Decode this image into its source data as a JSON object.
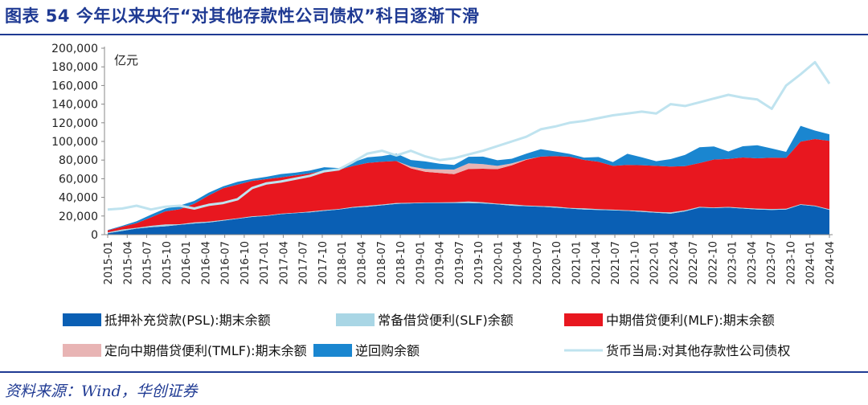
{
  "figure": {
    "title": "图表 54   今年以来央行“对其他存款性公司债权”科目逐渐下滑",
    "source": "资料来源：Wind，华创证券"
  },
  "colors": {
    "psl": "#0a5fb4",
    "slf": "#a9d6e5",
    "mlf": "#e8171f",
    "tmlf": "#e8b4b4",
    "repo": "#1a86d0",
    "claims": "#bfe3ef",
    "title": "#1f3a93"
  },
  "chart_data": {
    "type": "area",
    "unit_label": "亿元",
    "ylim": [
      0,
      200000
    ],
    "yticks": [
      "0",
      "20,000",
      "40,000",
      "60,000",
      "80,000",
      "100,000",
      "120,000",
      "140,000",
      "160,000",
      "180,000",
      "200,000"
    ],
    "x_ticks": [
      "2015-01",
      "2015-04",
      "2015-07",
      "2015-10",
      "2016-01",
      "2016-04",
      "2016-07",
      "2016-10",
      "2017-01",
      "2017-04",
      "2017-07",
      "2017-10",
      "2018-01",
      "2018-04",
      "2018-07",
      "2018-10",
      "2019-01",
      "2019-04",
      "2019-07",
      "2019-10",
      "2020-01",
      "2020-04",
      "2020-07",
      "2020-10",
      "2021-01",
      "2021-04",
      "2021-07",
      "2021-10",
      "2022-01",
      "2022-04",
      "2022-07",
      "2022-10",
      "2023-01",
      "2023-04",
      "2023-07",
      "2023-10",
      "2024-01",
      "2024-04"
    ],
    "stacked_area": [
      {
        "name": "抵押补充贷款(PSL):期末余额",
        "values": [
          1500,
          4000,
          6500,
          8000,
          9000,
          10500,
          12000,
          13000,
          15000,
          17000,
          19000,
          20000,
          22000,
          23000,
          24000,
          25500,
          27000,
          29000,
          30000,
          31500,
          33000,
          33500,
          34000,
          34000,
          34000,
          34000,
          33500,
          32500,
          31000,
          30500,
          30000,
          29000,
          28000,
          27000,
          26500,
          26000,
          25500,
          24500,
          23500,
          22500,
          25000,
          29000,
          28500,
          29000,
          28000,
          27000,
          26500,
          27000,
          32000,
          30500,
          26500
        ]
      },
      {
        "name": "常备借贷便利(SLF)余额",
        "values": [
          1000,
          1500,
          800,
          1500,
          2000,
          700,
          1200,
          1000,
          800,
          600,
          700,
          600,
          500,
          500,
          700,
          800,
          500,
          700,
          1000,
          800,
          1000,
          600,
          500,
          600,
          800,
          1500,
          1200,
          800,
          1500,
          800,
          700,
          1200,
          600,
          1200,
          800,
          800,
          700,
          1000,
          800,
          1500,
          1000,
          800,
          600,
          700,
          800,
          900,
          1000,
          800,
          700,
          600,
          700
        ]
      },
      {
        "name": "中期借贷便利(MLF):期末余额",
        "values": [
          2000,
          3000,
          5000,
          9000,
          14000,
          16000,
          20000,
          28000,
          34000,
          36000,
          38000,
          39000,
          39000,
          40000,
          41000,
          42500,
          42000,
          44000,
          46000,
          46000,
          45000,
          37000,
          33000,
          31500,
          30000,
          35000,
          36000,
          37000,
          42000,
          49000,
          53000,
          54000,
          55000,
          52000,
          51000,
          47000,
          48500,
          49000,
          49500,
          49000,
          47500,
          47000,
          51500,
          51500,
          54000,
          54000,
          55000,
          54500,
          67000,
          71500,
          73500
        ]
      },
      {
        "name": "定向中期借贷便利(TMLF):期末余额",
        "values": [
          0,
          0,
          0,
          0,
          0,
          0,
          0,
          0,
          0,
          0,
          0,
          0,
          0,
          0,
          0,
          0,
          0,
          0,
          0,
          0,
          0,
          2000,
          3000,
          4000,
          5000,
          6000,
          5000,
          3500,
          2000,
          500,
          0,
          0,
          0,
          0,
          0,
          0,
          0,
          0,
          0,
          0,
          0,
          0,
          0,
          0,
          0,
          0,
          0,
          0,
          0,
          0,
          0
        ]
      },
      {
        "name": "逆回购余额",
        "values": [
          500,
          1000,
          2000,
          3000,
          3000,
          4000,
          3000,
          3000,
          2000,
          3000,
          2000,
          2500,
          3500,
          3000,
          3000,
          3500,
          2000,
          4000,
          6000,
          6000,
          8000,
          7000,
          8000,
          6000,
          5000,
          7000,
          8000,
          6000,
          5000,
          6000,
          8000,
          5000,
          3000,
          2500,
          5000,
          4000,
          12000,
          8500,
          5000,
          8000,
          12000,
          17000,
          14000,
          8000,
          12000,
          14000,
          10000,
          6500,
          17000,
          9000,
          7000
        ]
      }
    ],
    "line": {
      "name": "货币当局:对其他存款性公司债权",
      "values": [
        27000,
        28000,
        31000,
        27000,
        30000,
        31000,
        28000,
        32000,
        34000,
        38000,
        50000,
        55000,
        57000,
        60000,
        63000,
        68000,
        70000,
        78000,
        87000,
        90000,
        85000,
        90000,
        84000,
        80000,
        82000,
        86000,
        90000,
        95000,
        100000,
        105000,
        113000,
        116000,
        120000,
        122000,
        125000,
        128000,
        130000,
        132000,
        130000,
        140000,
        138000,
        142000,
        146000,
        150000,
        147000,
        145000,
        135000,
        160000,
        172000,
        185000,
        162000
      ]
    }
  },
  "legend": {
    "psl": "抵押补充贷款(PSL):期末余额",
    "slf": "常备借贷便利(SLF)余额",
    "mlf": "中期借贷便利(MLF):期末余额",
    "tmlf": "定向中期借贷便利(TMLF):期末余额",
    "repo": "逆回购余额",
    "claims": "货币当局:对其他存款性公司债权"
  }
}
